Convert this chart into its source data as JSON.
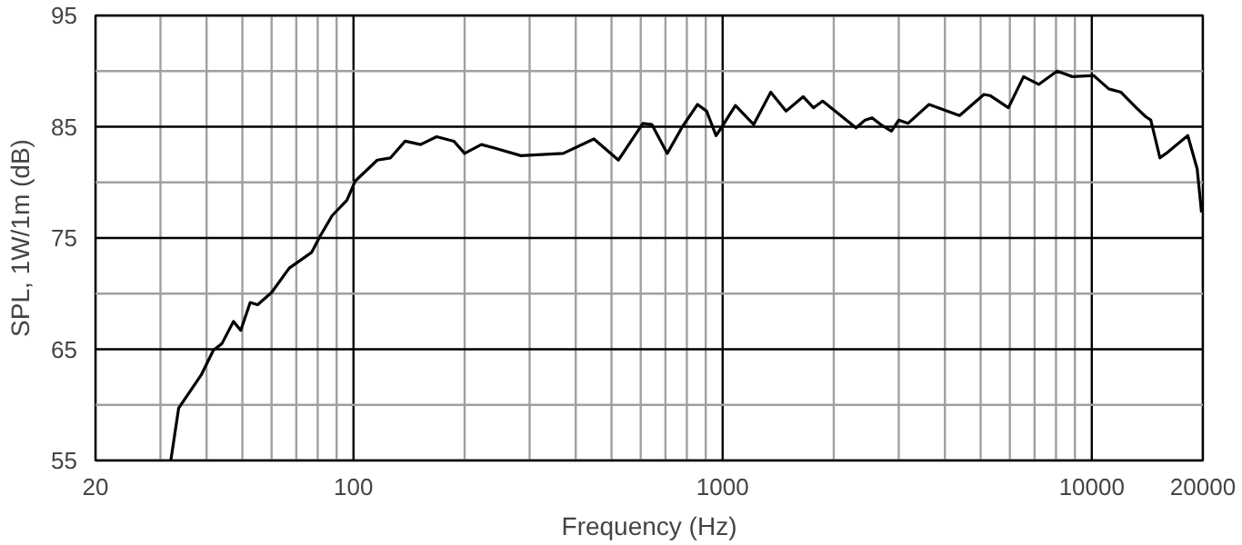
{
  "chart_data": {
    "type": "line",
    "xlabel": "Frequency (Hz)",
    "ylabel": "SPL, 1W/1m (dB)",
    "log": "x",
    "grid": true,
    "marker": "none",
    "line_style": "solid",
    "xlim": [
      20,
      20000
    ],
    "ylim": [
      55,
      95
    ],
    "xticks": [
      20,
      {
        "value": 30,
        "label": null
      },
      {
        "value": 40,
        "label": null
      },
      {
        "value": 50,
        "label": null
      },
      {
        "value": 60,
        "label": null
      },
      {
        "value": 70,
        "label": null
      },
      {
        "value": 80,
        "label": null
      },
      {
        "value": 90,
        "label": null
      },
      100,
      {
        "value": 200,
        "label": null
      },
      {
        "value": 300,
        "label": null
      },
      {
        "value": 400,
        "label": null
      },
      {
        "value": 500,
        "label": null
      },
      {
        "value": 600,
        "label": null
      },
      {
        "value": 700,
        "label": null
      },
      {
        "value": 800,
        "label": null
      },
      {
        "value": 900,
        "label": null
      },
      1000,
      {
        "value": 2000,
        "label": null
      },
      {
        "value": 3000,
        "label": null
      },
      {
        "value": 4000,
        "label": null
      },
      {
        "value": 5000,
        "label": null
      },
      {
        "value": 6000,
        "label": null
      },
      {
        "value": 7000,
        "label": null
      },
      {
        "value": 8000,
        "label": null
      },
      {
        "value": 9000,
        "label": null
      },
      10000,
      20000
    ],
    "yticks": [
      55,
      {
        "value": 60,
        "label": null
      },
      65,
      {
        "value": 70,
        "label": null
      },
      75,
      {
        "value": 80,
        "label": null
      },
      85,
      {
        "value": 90,
        "label": null
      },
      95
    ],
    "series": [
      {
        "color": "#000000",
        "x": [
          32,
          33.6,
          38.7,
          41.7,
          44,
          47.3,
          49.5,
          52.5,
          55,
          60,
          67,
          77,
          81,
          87.5,
          96,
          101,
          116,
          126,
          138,
          152,
          168,
          187,
          200,
          222,
          240,
          284,
          370,
          448,
          522,
          608,
          643,
          708,
          778,
          855,
          905,
          960,
          996,
          1083,
          1214,
          1350,
          1485,
          1652,
          1762,
          1866,
          2053,
          2297,
          2432,
          2540,
          2679,
          2866,
          3001,
          3177,
          3624,
          4383,
          5102,
          5300,
          5945,
          6535,
          7180,
          8055,
          8858,
          10115,
          11120,
          12000,
          13200,
          14000,
          14450,
          15300,
          15900,
          18200,
          19300,
          19830
        ],
        "values": [
          55,
          59.7,
          62.7,
          64.9,
          65.5,
          67.5,
          66.7,
          69.2,
          69,
          70.1,
          72.3,
          73.7,
          75.1,
          77,
          78.4,
          80.1,
          82,
          82.2,
          83.7,
          83.4,
          84.1,
          83.7,
          82.6,
          83.4,
          83.1,
          82.4,
          82.6,
          83.9,
          82,
          85.3,
          85.2,
          82.6,
          85,
          87,
          86.4,
          84.2,
          85,
          86.9,
          85.2,
          88.1,
          86.4,
          87.7,
          86.7,
          87.3,
          86.2,
          84.9,
          85.6,
          85.8,
          85.2,
          84.6,
          85.6,
          85.3,
          87,
          86,
          87.9,
          87.8,
          86.7,
          89.5,
          88.8,
          90,
          89.5,
          89.6,
          88.4,
          88.1,
          86.7,
          85.9,
          85.6,
          82.2,
          82.6,
          84.2,
          81.2,
          77.3
        ]
      }
    ]
  }
}
